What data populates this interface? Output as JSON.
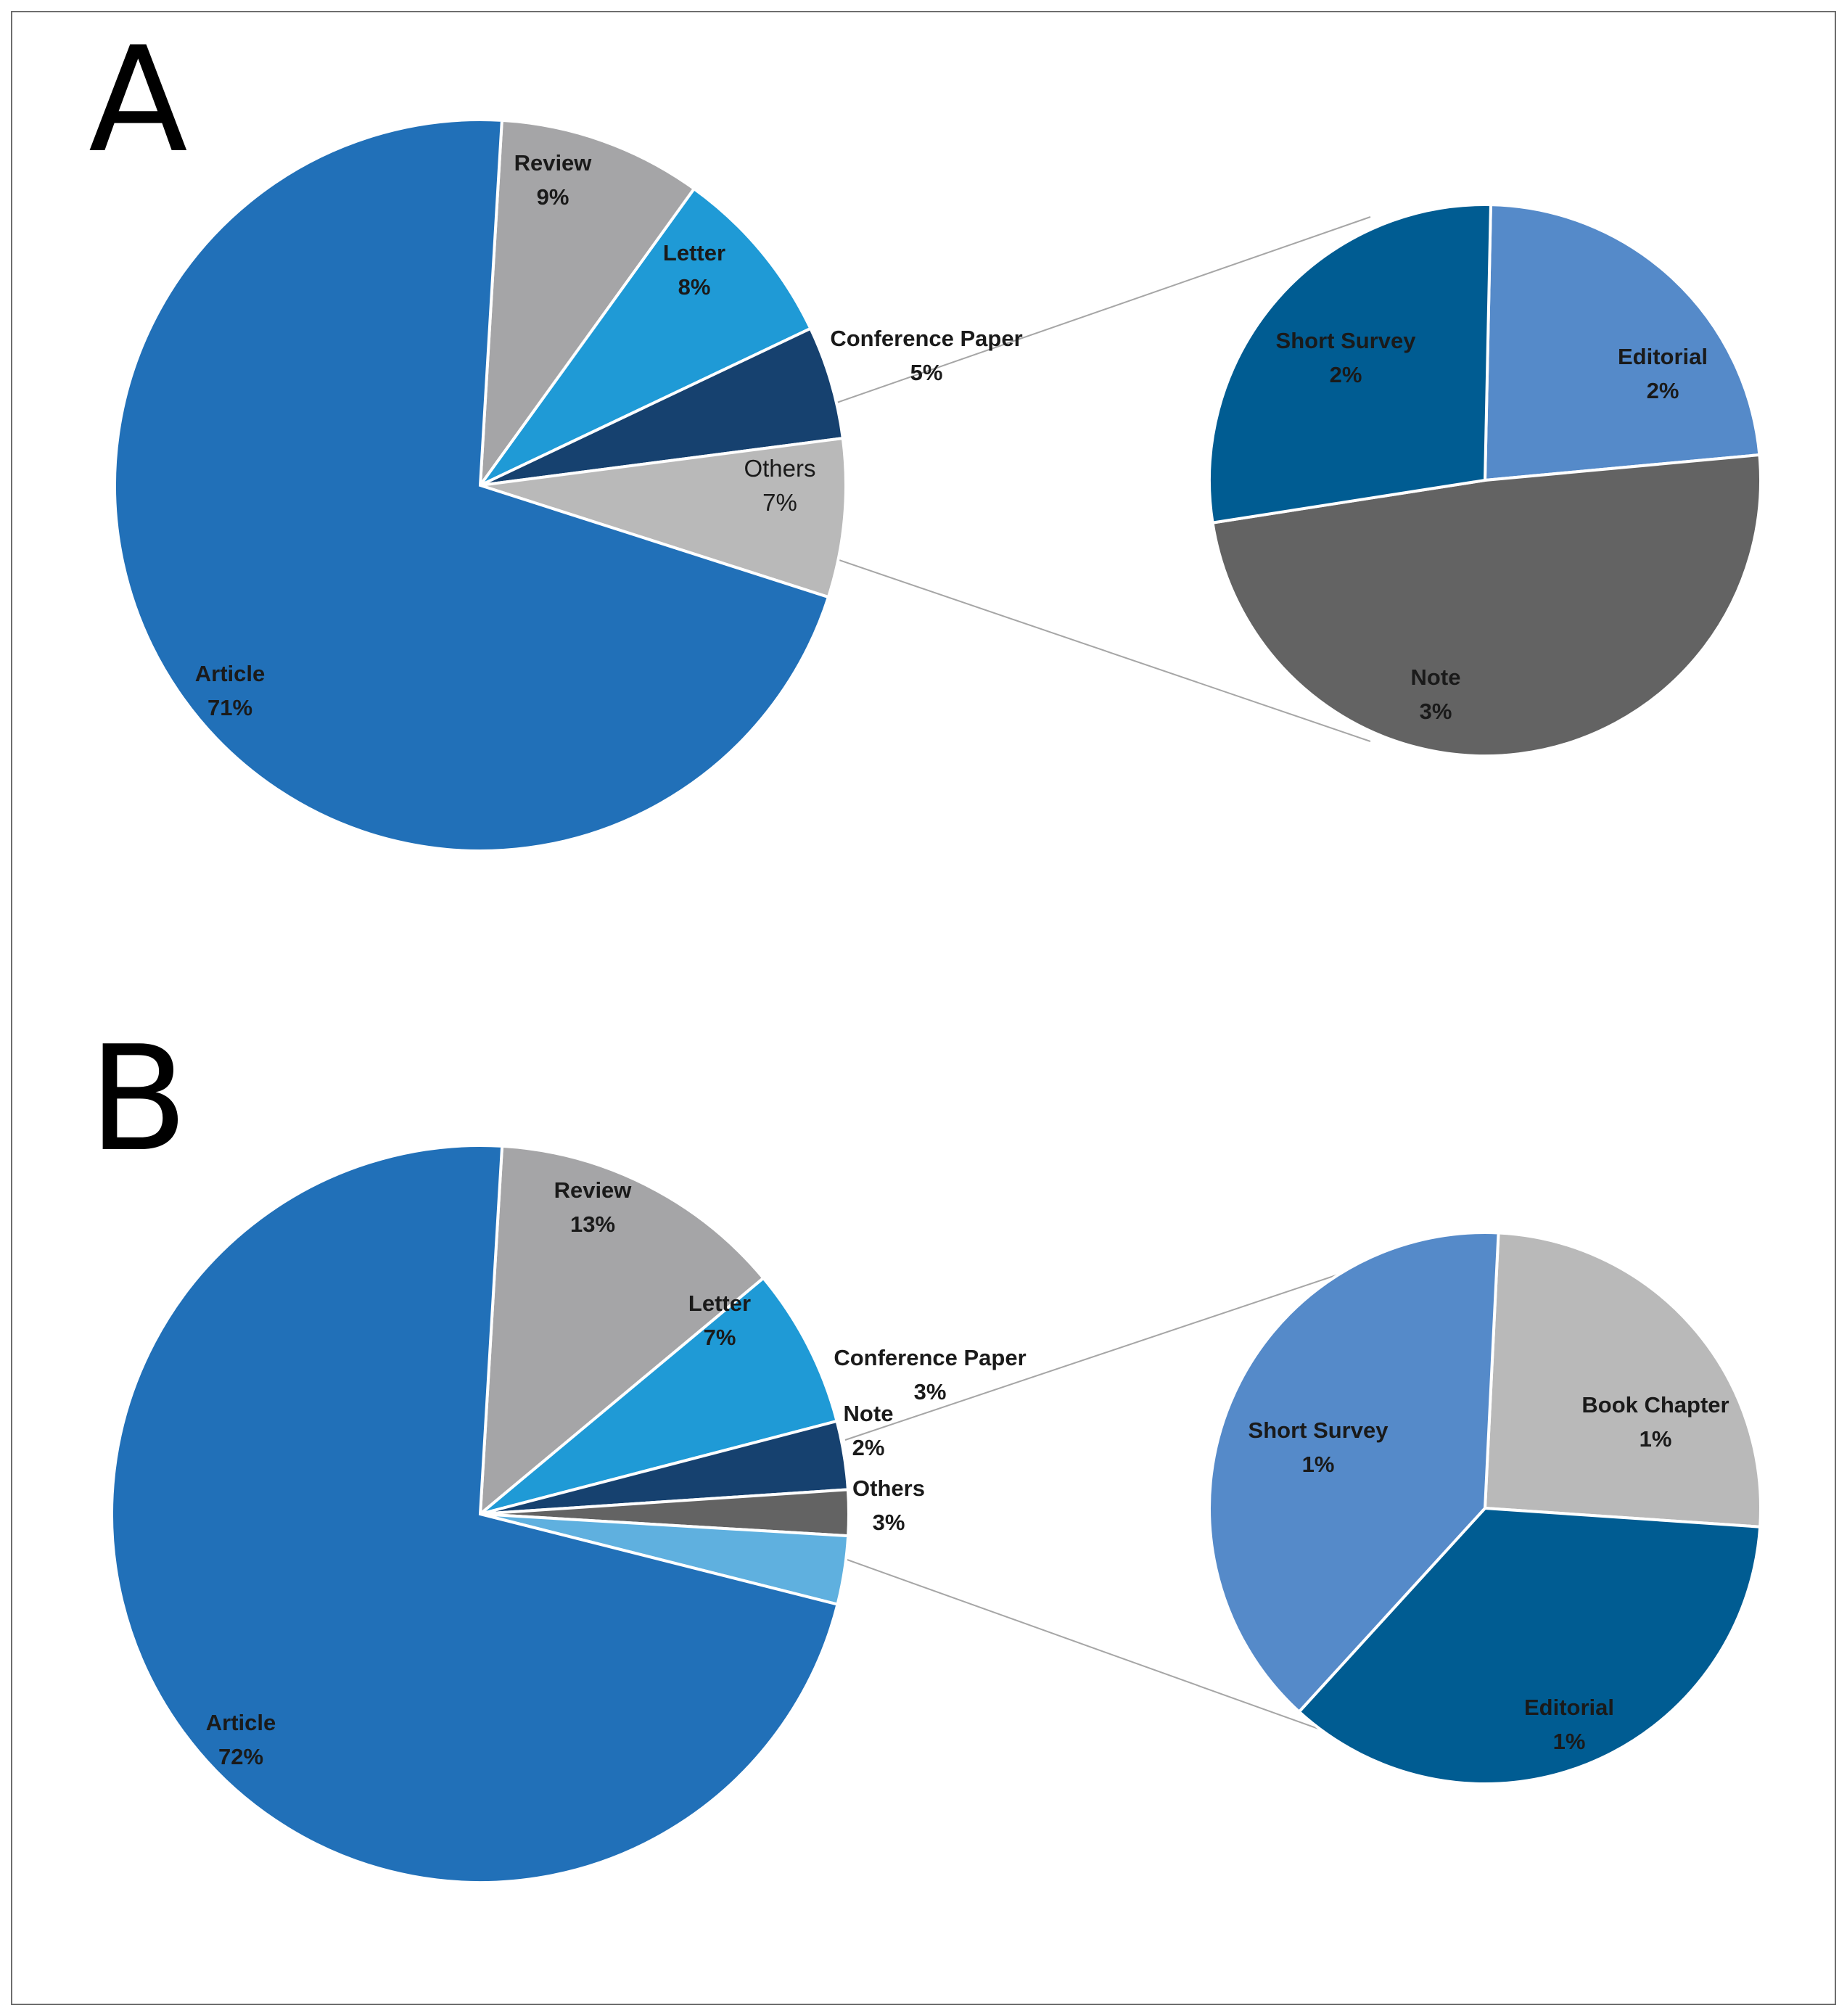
{
  "panel_letters": [
    "A",
    "B"
  ],
  "chart_data": [
    {
      "panel": "A",
      "type": "pie",
      "subtype": "pie-of-pie",
      "main": {
        "slices": [
          {
            "label": "Review",
            "pct_label": "9%",
            "value": 9,
            "color": "#a5a5a7",
            "bold": true
          },
          {
            "label": "Letter",
            "pct_label": "8%",
            "value": 8,
            "color": "#1f9ad6",
            "bold": true
          },
          {
            "label": "Conference Paper",
            "pct_label": "5%",
            "value": 5,
            "color": "#16416f",
            "bold": true
          },
          {
            "label": "Others",
            "pct_label": "7%",
            "value": 7,
            "color": "#b9b9b9",
            "bold": false
          },
          {
            "label": "Article",
            "pct_label": "71%",
            "value": 71,
            "color": "#2170b8",
            "bold": true
          }
        ]
      },
      "secondary": {
        "slices": [
          {
            "label": "Editorial",
            "pct_label": "2%",
            "value": 2,
            "color": "#558ac9",
            "bold": true
          },
          {
            "label": "Note",
            "pct_label": "3%",
            "value": 3,
            "color": "#636363",
            "bold": true
          },
          {
            "label": "Short Survey",
            "pct_label": "2%",
            "value": 2,
            "color": "#005c92",
            "bold": true
          }
        ]
      }
    },
    {
      "panel": "B",
      "type": "pie",
      "subtype": "pie-of-pie",
      "main": {
        "slices": [
          {
            "label": "Review",
            "pct_label": "13%",
            "value": 13,
            "color": "#a5a5a7",
            "bold": true
          },
          {
            "label": "Letter",
            "pct_label": "7%",
            "value": 7,
            "color": "#1f9ad6",
            "bold": true
          },
          {
            "label": "Conference Paper",
            "pct_label": "3%",
            "value": 3,
            "color": "#16416f",
            "bold": true
          },
          {
            "label": "Note",
            "pct_label": "2%",
            "value": 2,
            "color": "#636363",
            "bold": true
          },
          {
            "label": "Others",
            "pct_label": "3%",
            "value": 3,
            "color": "#5fb0df",
            "bold": true
          },
          {
            "label": "Article",
            "pct_label": "72%",
            "value": 72,
            "color": "#2170b8",
            "bold": true
          }
        ]
      },
      "secondary": {
        "slices": [
          {
            "label": "Book Chapter",
            "pct_label": "1%",
            "value": 1,
            "color": "#b9b9b9",
            "bold": true
          },
          {
            "label": "Editorial",
            "pct_label": "1%",
            "value": 1,
            "color": "#005c92",
            "bold": true
          },
          {
            "label": "Short Survey",
            "pct_label": "1%",
            "value": 1,
            "color": "#558ac9",
            "bold": true
          }
        ]
      }
    }
  ]
}
